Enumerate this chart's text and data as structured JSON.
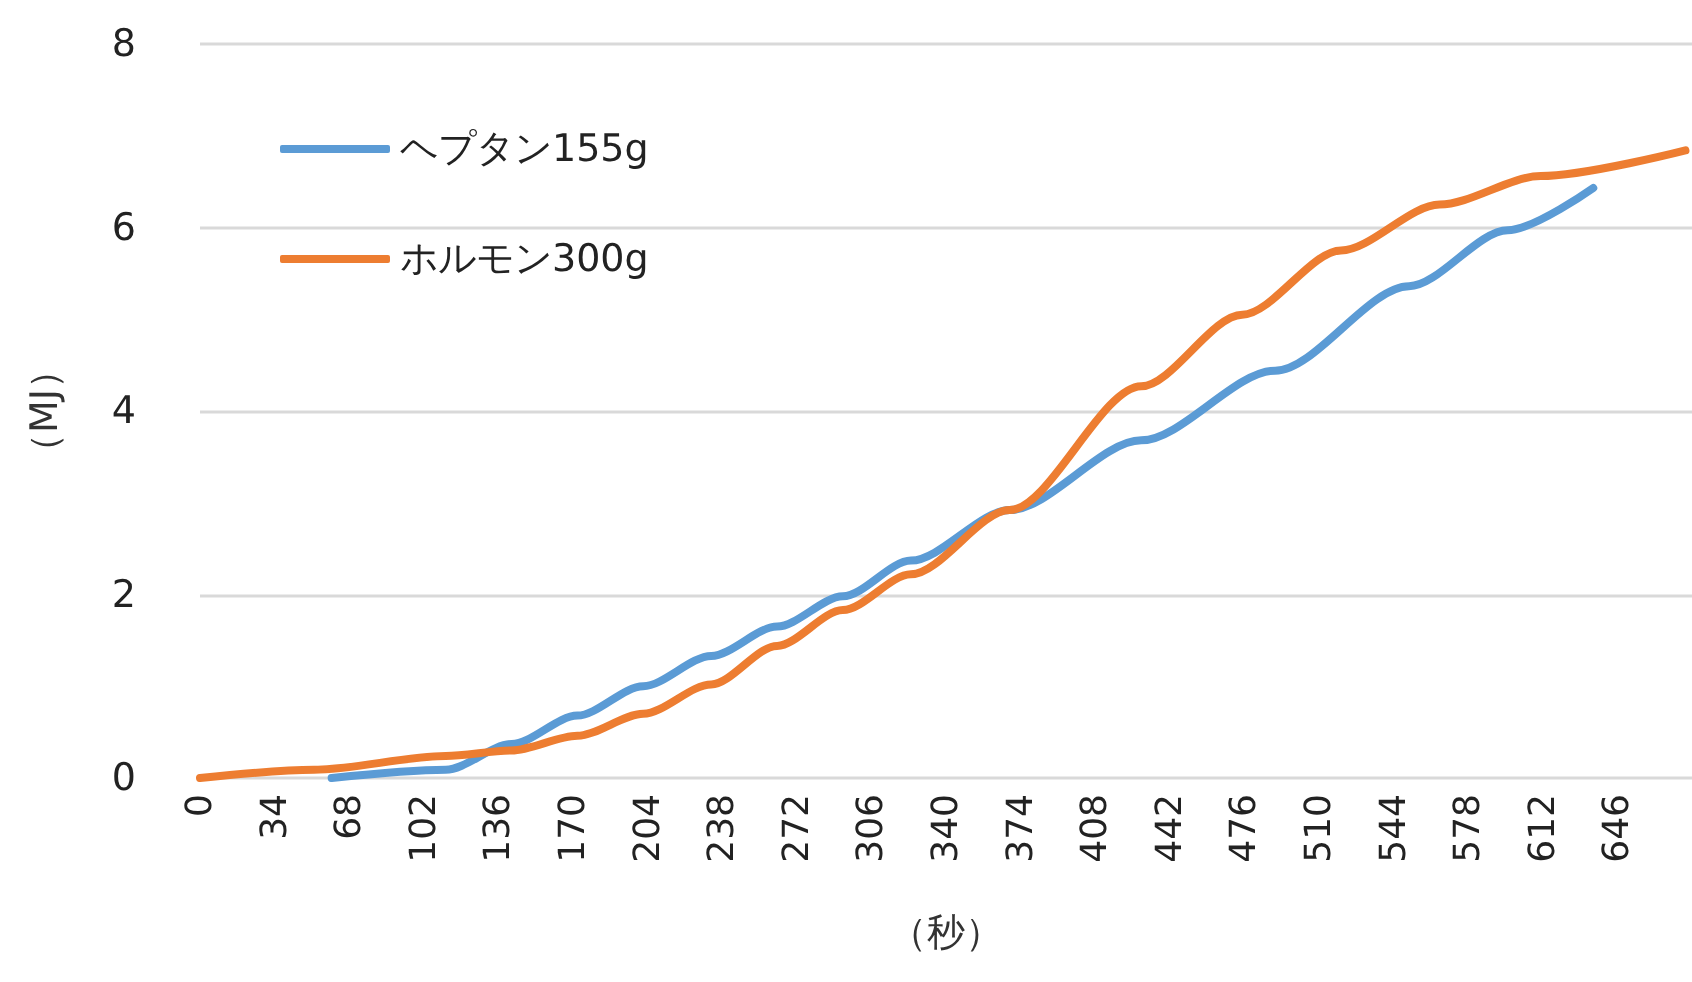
{
  "chart_data": {
    "type": "line",
    "xlabel": "（秒）",
    "ylabel": "（MJ）",
    "xlim": [
      0,
      680
    ],
    "xticks": [
      0,
      34,
      68,
      102,
      136,
      170,
      204,
      238,
      272,
      306,
      340,
      374,
      408,
      442,
      476,
      510,
      544,
      578,
      612,
      646
    ],
    "ylim": [
      0,
      8
    ],
    "yticks": [
      0,
      2,
      4,
      6,
      8
    ],
    "grid": "y",
    "legend": "top left",
    "marker": "none",
    "line_style": "solid",
    "series": [
      {
        "name": "ヘプタン155g",
        "color": "#5b9bd5",
        "x": [
          60,
          112,
          142,
          172,
          202,
          233,
          263,
          293,
          324,
          369,
          429,
          490,
          551,
          596,
          635
        ],
        "values": [
          0,
          0.09,
          0.37,
          0.68,
          1.0,
          1.33,
          1.65,
          1.98,
          2.37,
          2.92,
          3.68,
          4.44,
          5.36,
          5.97,
          6.43
        ]
      },
      {
        "name": "ホルモン300g",
        "color": "#ed7d31",
        "x": [
          0,
          52,
          112,
          142,
          172,
          202,
          233,
          263,
          293,
          324,
          369,
          429,
          475,
          520,
          565,
          611,
          677
        ],
        "values": [
          0,
          0.09,
          0.24,
          0.3,
          0.46,
          0.7,
          1.02,
          1.44,
          1.83,
          2.22,
          2.92,
          4.27,
          5.05,
          5.75,
          6.25,
          6.56,
          6.84
        ]
      }
    ]
  }
}
